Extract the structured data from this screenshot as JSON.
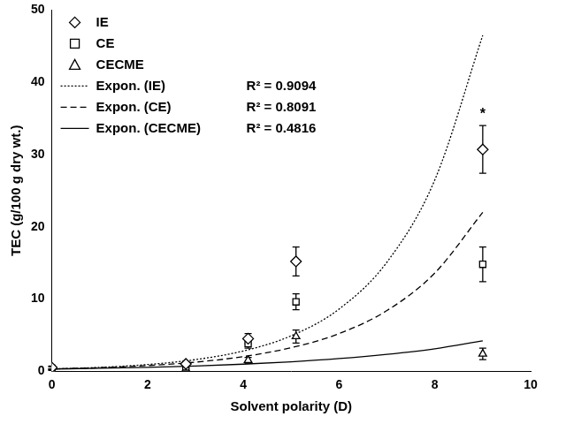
{
  "chart_data": {
    "type": "scatter",
    "x_label": "Solvent polarity (D)",
    "y_label": "TEC (g/100 g dry wt.)",
    "xlim": [
      0,
      10
    ],
    "xticks": [
      0,
      2,
      4,
      6,
      8,
      10
    ],
    "ylim": [
      0,
      50
    ],
    "yticks": [
      0,
      10,
      20,
      30,
      40,
      50
    ],
    "grid": false,
    "legend": "upper left",
    "series": [
      {
        "name": "IE",
        "type": "scatter",
        "marker": "diamond",
        "color": "#000000",
        "x": [
          0,
          2.8,
          4.1,
          5.1,
          9
        ],
        "values": [
          0.5,
          1.0,
          4.5,
          15.2,
          30.7
        ],
        "errors": [
          0.2,
          0.3,
          0.7,
          2.0,
          3.3
        ]
      },
      {
        "name": "CE",
        "type": "scatter",
        "marker": "square",
        "color": "#000000",
        "x": [
          0,
          2.8,
          4.1,
          5.1,
          9
        ],
        "values": [
          0.4,
          0.6,
          3.8,
          9.6,
          14.8
        ],
        "errors": [
          0.2,
          0.2,
          0.6,
          1.1,
          2.4
        ]
      },
      {
        "name": "CECME",
        "type": "scatter",
        "marker": "triangle",
        "color": "#000000",
        "x": [
          0,
          2.8,
          4.1,
          5.1,
          9
        ],
        "values": [
          0.2,
          0.3,
          1.5,
          4.8,
          2.4
        ],
        "errors": [
          0.1,
          0.2,
          0.4,
          0.9,
          0.8
        ]
      },
      {
        "name": "Expon. (IE)",
        "type": "line",
        "line_style": "dotted",
        "color": "#000000",
        "label": "R² = 0.9094",
        "x": [
          0,
          1,
          2,
          3,
          4,
          5,
          6,
          7,
          8,
          9
        ],
        "values": [
          0.3,
          0.53,
          0.92,
          1.6,
          2.8,
          4.9,
          8.6,
          15.1,
          26.5,
          46.5
        ]
      },
      {
        "name": "Expon. (CE)",
        "type": "line",
        "line_style": "dashed",
        "color": "#000000",
        "label": "R² = 0.8091",
        "x": [
          0,
          1,
          2,
          3,
          4,
          5,
          6,
          7,
          8,
          9
        ],
        "values": [
          0.3,
          0.48,
          0.78,
          1.25,
          2.02,
          3.25,
          5.2,
          8.4,
          13.6,
          22.0
        ]
      },
      {
        "name": "Expon. (CECME)",
        "type": "line",
        "line_style": "solid",
        "color": "#000000",
        "label": "R² = 0.4816",
        "x": [
          0,
          1,
          2,
          3,
          4,
          5,
          6,
          7,
          8,
          9
        ],
        "values": [
          0.3,
          0.4,
          0.54,
          0.72,
          0.97,
          1.3,
          1.74,
          2.33,
          3.1,
          4.2
        ]
      }
    ],
    "annotations": [
      {
        "text": "*",
        "x": 9,
        "y": 35.6
      }
    ]
  }
}
